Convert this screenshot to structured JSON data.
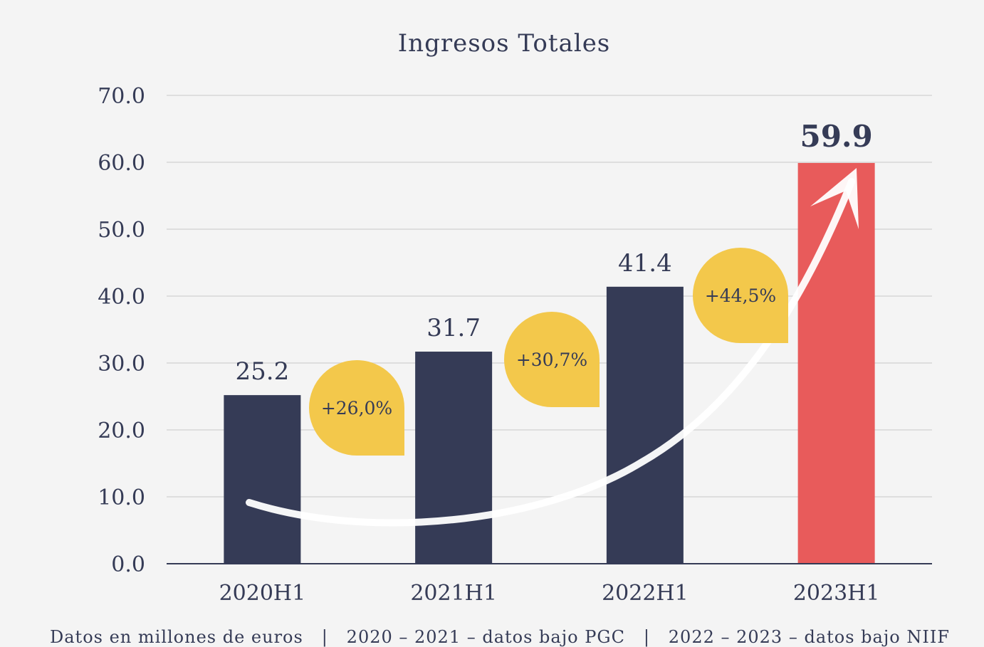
{
  "chart_data": {
    "type": "bar",
    "title": "Ingresos Totales",
    "categories": [
      "2020H1",
      "2021H1",
      "2022H1",
      "2023H1"
    ],
    "values": [
      25.2,
      31.7,
      41.4,
      59.9
    ],
    "value_labels": [
      "25.2",
      "31.7",
      "41.4",
      "59.9"
    ],
    "ylim": [
      0,
      70
    ],
    "yticks": [
      "0.0",
      "10.0",
      "20.0",
      "30.0",
      "40.0",
      "50.0",
      "60.0",
      "70.0"
    ],
    "grid": true,
    "growth_badges": [
      "+26,0%",
      "+30,7%",
      "+44,5%"
    ],
    "footnote": "Datos en millones de euros   |   2020 – 2021 – datos bajo PGC   |   2022 – 2023 – datos bajo NIIF"
  },
  "colors": {
    "background": "#f4f4f4",
    "bar_default": "#353b56",
    "bar_highlight": "#e85b5b",
    "badge": "#f3c84b",
    "text": "#353b56",
    "grid": "#dedede",
    "arrow": "#ffffff"
  }
}
